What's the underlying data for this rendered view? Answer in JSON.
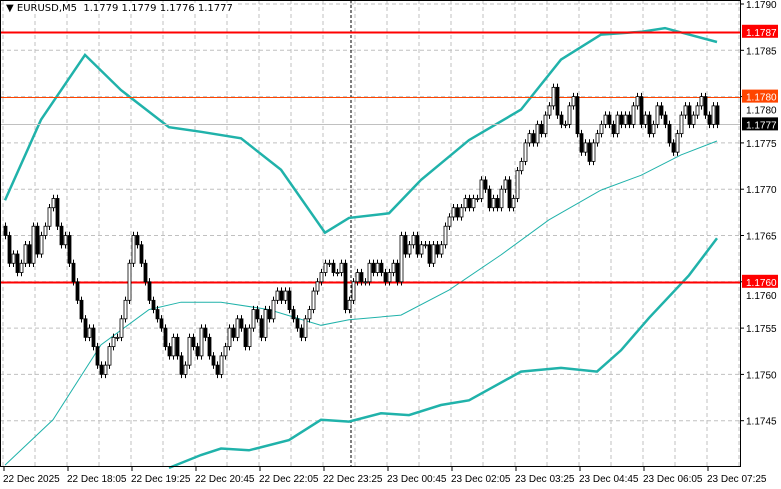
{
  "header": {
    "symbol_timeframe": "EURUSD,M5",
    "ohlc": "1.1779 1.1779 1.1776 1.1777",
    "menu_icon": "triangle-down-icon"
  },
  "chart_data": {
    "type": "candlestick",
    "symbol": "EURUSD",
    "timeframe": "M5",
    "ylim": [
      1.174,
      1.1791
    ],
    "grid": true,
    "y_ticks": [
      "1.1790",
      "1.1785",
      "1.1780",
      "1.1775",
      "1.1770",
      "1.1765",
      "1.1760",
      "1.1755",
      "1.1750",
      "1.1745"
    ],
    "x_ticks": [
      "22 Dec 2025",
      "22 Dec 18:05",
      "22 Dec 19:25",
      "22 Dec 20:45",
      "22 Dec 22:05",
      "22 Dec 23:25",
      "23 Dec 00:45",
      "23 Dec 02:05",
      "23 Dec 03:25",
      "23 Dec 04:45",
      "23 Dec 06:05",
      "23 Dec 07:25"
    ],
    "closes": [
      1.1765,
      1.1762,
      1.1763,
      1.1761,
      1.1762,
      1.1764,
      1.1762,
      1.1766,
      1.1763,
      1.1765,
      1.1766,
      1.1768,
      1.1769,
      1.1766,
      1.1764,
      1.1765,
      1.1762,
      1.176,
      1.1758,
      1.1756,
      1.1754,
      1.1755,
      1.1753,
      1.1751,
      1.175,
      1.1751,
      1.1753,
      1.1754,
      1.1754,
      1.1756,
      1.1758,
      1.1762,
      1.1765,
      1.1764,
      1.1762,
      1.176,
      1.1758,
      1.1757,
      1.1756,
      1.1755,
      1.1753,
      1.1752,
      1.1754,
      1.1752,
      1.175,
      1.1751,
      1.1754,
      1.1753,
      1.1752,
      1.1755,
      1.1754,
      1.1752,
      1.1751,
      1.175,
      1.1752,
      1.1753,
      1.1755,
      1.1754,
      1.1756,
      1.1755,
      1.1753,
      1.1755,
      1.1757,
      1.1756,
      1.1754,
      1.1757,
      1.1756,
      1.1758,
      1.1759,
      1.1758,
      1.1759,
      1.1757,
      1.1756,
      1.1755,
      1.1754,
      1.1756,
      1.1757,
      1.1759,
      1.176,
      1.1761,
      1.1762,
      1.1762,
      1.1761,
      1.1761,
      1.1762,
      1.1757,
      1.1758,
      1.176,
      1.1761,
      1.176,
      1.176,
      1.1762,
      1.1761,
      1.1762,
      1.1761,
      1.176,
      1.1761,
      1.1762,
      1.176,
      1.1765,
      1.1763,
      1.1764,
      1.1765,
      1.1763,
      1.1764,
      1.1764,
      1.1762,
      1.1764,
      1.1763,
      1.1764,
      1.1766,
      1.1767,
      1.1768,
      1.1767,
      1.1768,
      1.1769,
      1.1768,
      1.1769,
      1.1769,
      1.1771,
      1.177,
      1.1768,
      1.1769,
      1.1768,
      1.177,
      1.1771,
      1.1768,
      1.1769,
      1.1772,
      1.1773,
      1.1775,
      1.1776,
      1.1775,
      1.1777,
      1.1776,
      1.1778,
      1.1779,
      1.1781,
      1.1778,
      1.1777,
      1.1777,
      1.1779,
      1.178,
      1.1776,
      1.1774,
      1.1775,
      1.1773,
      1.1775,
      1.1776,
      1.1777,
      1.1778,
      1.1777,
      1.1776,
      1.1778,
      1.1777,
      1.1778,
      1.1777,
      1.1779,
      1.178,
      1.1777,
      1.1778,
      1.1776,
      1.1777,
      1.1779,
      1.1778,
      1.1777,
      1.1775,
      1.1774,
      1.1776,
      1.1778,
      1.1779,
      1.1777,
      1.1778,
      1.1779,
      1.178,
      1.1778,
      1.1777,
      1.1779,
      1.1777
    ],
    "bollinger": {
      "upper": [
        [
          0,
          1.17688
        ],
        [
          9,
          1.17775
        ],
        [
          20,
          1.17845
        ],
        [
          29,
          1.17807
        ],
        [
          41,
          1.17767
        ],
        [
          49,
          1.17762
        ],
        [
          59,
          1.17755
        ],
        [
          69,
          1.17721
        ],
        [
          80,
          1.17653
        ],
        [
          86,
          1.17669
        ],
        [
          96,
          1.17674
        ],
        [
          104,
          1.1771
        ],
        [
          116,
          1.17753
        ],
        [
          129,
          1.17786
        ],
        [
          139,
          1.1784
        ],
        [
          149,
          1.17867
        ],
        [
          159,
          1.1787
        ],
        [
          165,
          1.17874
        ],
        [
          171,
          1.17867
        ],
        [
          178,
          1.17859
        ]
      ],
      "middle": [
        [
          0,
          1.17402
        ],
        [
          12,
          1.17451
        ],
        [
          24,
          1.17532
        ],
        [
          36,
          1.1757
        ],
        [
          44,
          1.17578
        ],
        [
          54,
          1.17578
        ],
        [
          66,
          1.1757
        ],
        [
          79,
          1.17553
        ],
        [
          86,
          1.17559
        ],
        [
          99,
          1.17564
        ],
        [
          111,
          1.17591
        ],
        [
          124,
          1.17629
        ],
        [
          136,
          1.17667
        ],
        [
          149,
          1.17699
        ],
        [
          159,
          1.17715
        ],
        [
          169,
          1.17737
        ],
        [
          178,
          1.17752
        ]
      ],
      "lower": [
        [
          41,
          1.17399
        ],
        [
          49,
          1.17413
        ],
        [
          54,
          1.1742
        ],
        [
          61,
          1.17418
        ],
        [
          71,
          1.17429
        ],
        [
          79,
          1.17451
        ],
        [
          86,
          1.17449
        ],
        [
          94,
          1.17458
        ],
        [
          101,
          1.17456
        ],
        [
          109,
          1.17467
        ],
        [
          116,
          1.17472
        ],
        [
          129,
          1.17503
        ],
        [
          139,
          1.17507
        ],
        [
          148,
          1.17503
        ],
        [
          154,
          1.17526
        ],
        [
          161,
          1.17561
        ],
        [
          171,
          1.17607
        ],
        [
          178,
          1.17647
        ]
      ],
      "color": "#20b2aa"
    },
    "levels": [
      {
        "price": 1.1787,
        "label": "1.1787",
        "color": "#ff0000",
        "style": "thick"
      },
      {
        "price": 1.178,
        "label": "1.1780",
        "color": "#ff4500",
        "style": "thin"
      },
      {
        "price": 1.1777,
        "label": "1.1777",
        "color": "#c0c0c0",
        "label_bg": "#000000",
        "style": "bid"
      },
      {
        "price": 1.176,
        "label": "1.1760",
        "color": "#ff0000",
        "style": "thick"
      }
    ],
    "separator_time": "22 Dec 23:25"
  }
}
